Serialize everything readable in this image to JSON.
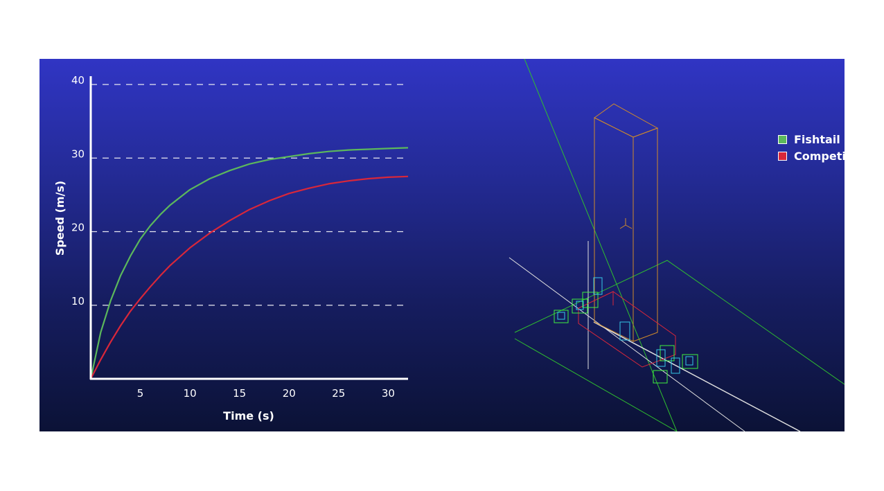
{
  "chart_data": {
    "type": "line",
    "xlabel": "Time (s)",
    "ylabel": "Speed (m/s)",
    "xlim": [
      0,
      32
    ],
    "ylim": [
      0,
      40
    ],
    "xticks": [
      5,
      10,
      15,
      20,
      25,
      30
    ],
    "yticks": [
      10,
      20,
      30,
      40
    ],
    "grid": "dashed horizontal",
    "legend_position": "top-right",
    "series": [
      {
        "name": "Fishtail",
        "color": "#5cb85c",
        "x": [
          0,
          1,
          2,
          3,
          4,
          5,
          6,
          7,
          8,
          10,
          12,
          14,
          16,
          18,
          20,
          22,
          24,
          26,
          28,
          30,
          32
        ],
        "y": [
          0,
          6.3,
          10.6,
          14.0,
          16.7,
          19.0,
          20.8,
          22.3,
          23.6,
          25.7,
          27.2,
          28.3,
          29.2,
          29.8,
          30.2,
          30.6,
          30.9,
          31.1,
          31.2,
          31.3,
          31.4
        ]
      },
      {
        "name": "Competitor",
        "color": "#d9273a",
        "x": [
          0,
          1,
          2,
          3,
          4,
          5,
          6,
          7,
          8,
          10,
          12,
          14,
          16,
          18,
          20,
          22,
          24,
          26,
          28,
          30,
          32
        ],
        "y": [
          0,
          2.6,
          5.0,
          7.2,
          9.2,
          10.9,
          12.5,
          14.0,
          15.4,
          17.8,
          19.8,
          21.5,
          23.0,
          24.2,
          25.2,
          25.9,
          26.5,
          26.9,
          27.2,
          27.4,
          27.5
        ]
      }
    ]
  },
  "diagram": {
    "description_icon": "wireframe-3d-tower-model-icon"
  }
}
